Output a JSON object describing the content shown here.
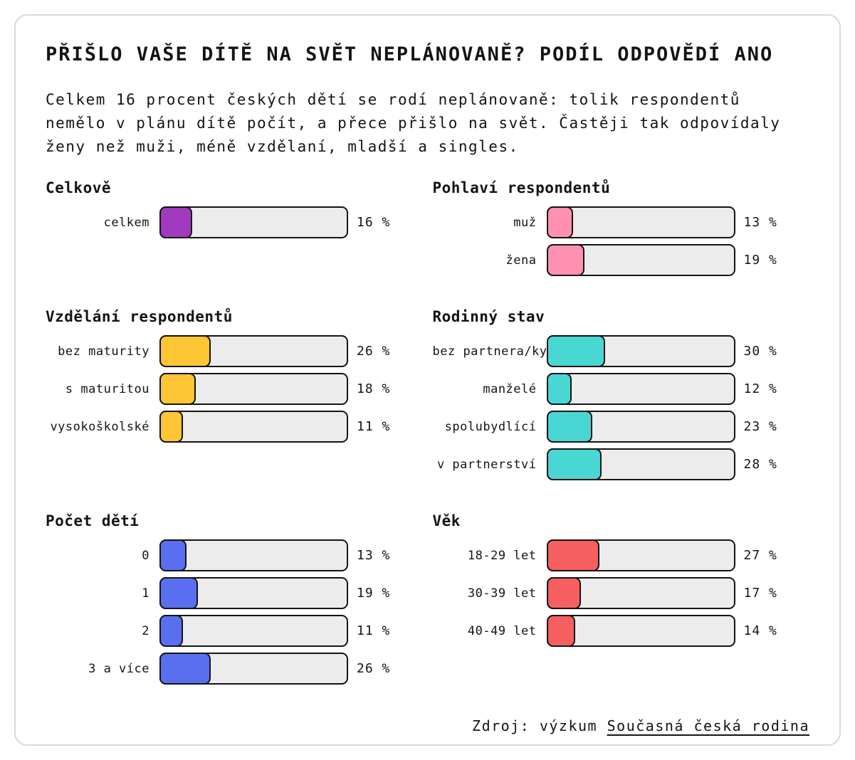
{
  "page": {
    "title": "PŘIŠLO VAŠE DÍTĚ NA SVĚT NEPLÁNOVANĚ? PODÍL ODPOVĚDÍ ANO",
    "subtitle": "Celkem 16 procent českých dětí se rodí neplánovaně: tolik respondentů nemělo v plánu dítě počít, a přece přišlo na svět. Častěji tak odpovídaly ženy než muži, méně vzdělaní, mladší a singles.",
    "source_prefix": "Zdroj: výzkum ",
    "source_link": "Současná česká rodina"
  },
  "colors": {
    "ink": "#141414",
    "track": "#ececec",
    "card_border": "#d8d8d8",
    "background": "#ffffff"
  },
  "chart_data": [
    {
      "type": "bar",
      "orientation": "horizontal",
      "title": "Celkově",
      "unit": "%",
      "xlim": [
        0,
        100
      ],
      "grid": false,
      "color": "#a13abf",
      "categories": [
        "celkem"
      ],
      "values": [
        16
      ]
    },
    {
      "type": "bar",
      "orientation": "horizontal",
      "title": "Pohlaví respondentů",
      "unit": "%",
      "xlim": [
        0,
        100
      ],
      "grid": false,
      "color": "#fe91b1",
      "categories": [
        "muž",
        "žena"
      ],
      "values": [
        13,
        19
      ]
    },
    {
      "type": "bar",
      "orientation": "horizontal",
      "title": "Vzdělání respondentů",
      "unit": "%",
      "xlim": [
        0,
        100
      ],
      "grid": false,
      "color": "#fec535",
      "categories": [
        "bez maturity",
        "s maturitou",
        "vysokoškolské"
      ],
      "values": [
        26,
        18,
        11
      ]
    },
    {
      "type": "bar",
      "orientation": "horizontal",
      "title": "Rodinný stav",
      "unit": "%",
      "xlim": [
        0,
        100
      ],
      "grid": false,
      "color": "#49d7d4",
      "categories": [
        "bez partnera/ky",
        "manželé",
        "spolubydlící",
        "v partnerství"
      ],
      "values": [
        30,
        12,
        23,
        28
      ]
    },
    {
      "type": "bar",
      "orientation": "horizontal",
      "title": "Počet dětí",
      "unit": "%",
      "xlim": [
        0,
        100
      ],
      "grid": false,
      "color": "#5a6ff0",
      "categories": [
        "0",
        "1",
        "2",
        "3 a více"
      ],
      "values": [
        13,
        19,
        11,
        26
      ]
    },
    {
      "type": "bar",
      "orientation": "horizontal",
      "title": "Věk",
      "unit": "%",
      "xlim": [
        0,
        100
      ],
      "grid": false,
      "color": "#f55f5f",
      "categories": [
        "18-29 let",
        "30-39 let",
        "40-49 let"
      ],
      "values": [
        27,
        17,
        14
      ]
    }
  ]
}
